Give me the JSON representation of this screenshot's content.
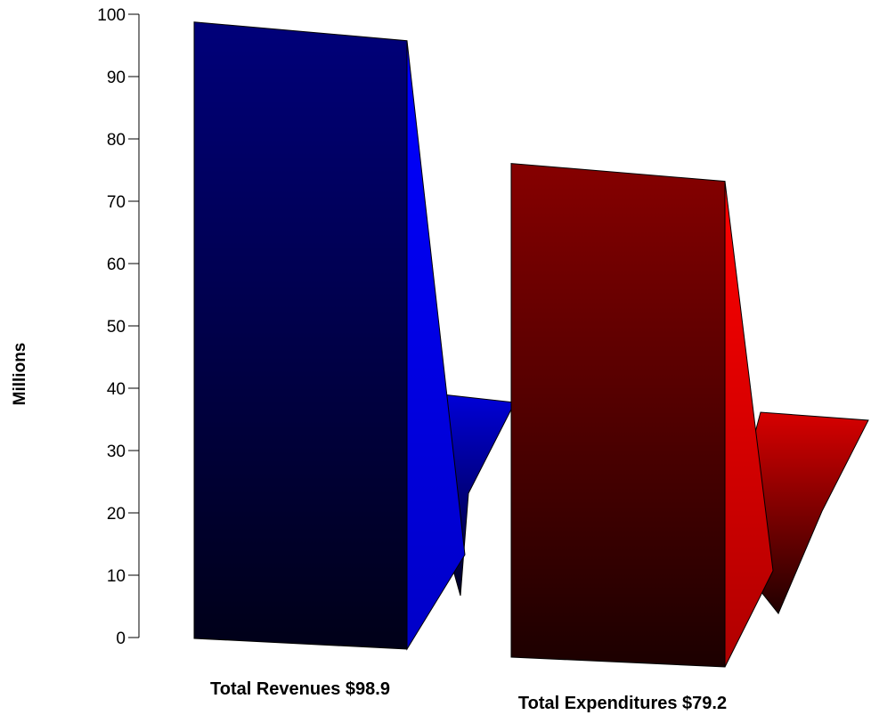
{
  "chart_data": {
    "type": "bar",
    "style": "3d",
    "categories": [
      "Total Revenues $98.9",
      "Total Expenditures $79.2"
    ],
    "values": [
      98.9,
      79.2
    ],
    "title": "",
    "xlabel": "",
    "ylabel": "Millions",
    "ylim": [
      0,
      100
    ],
    "yticks": [
      0,
      10,
      20,
      30,
      40,
      50,
      60,
      70,
      80,
      90,
      100
    ],
    "grid": false,
    "legend": "none",
    "colors": {
      "revenues_front_top": "#00007a",
      "revenues_front_bottom": "#000018",
      "revenues_side_top": "#0000ff",
      "revenues_side_bottom": "#0000c8",
      "expenditures_front_top": "#860000",
      "expenditures_front_bottom": "#1c0000",
      "expenditures_side_top": "#ff0000",
      "expenditures_side_bottom": "#b00000"
    }
  }
}
